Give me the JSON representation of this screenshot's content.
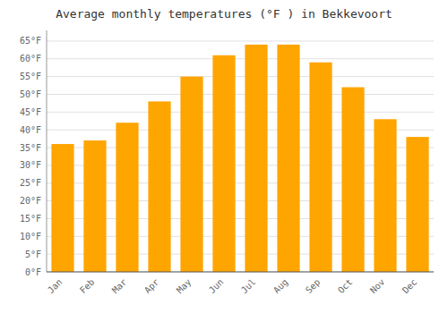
{
  "chart_data": {
    "type": "bar",
    "title": "Average monthly temperatures (°F ) in Bekkevoort",
    "categories": [
      "Jan",
      "Feb",
      "Mar",
      "Apr",
      "May",
      "Jun",
      "Jul",
      "Aug",
      "Sep",
      "Oct",
      "Nov",
      "Dec"
    ],
    "values": [
      36,
      37,
      42,
      48,
      55,
      61,
      64,
      64,
      59,
      52,
      43,
      38
    ],
    "color": "#FFA500",
    "ylim": [
      0,
      68
    ],
    "yticks": [
      {
        "value": 0,
        "label": "0°F"
      },
      {
        "value": 5,
        "label": "5°F"
      },
      {
        "value": 10,
        "label": "10°F"
      },
      {
        "value": 15,
        "label": "15°F"
      },
      {
        "value": 20,
        "label": "20°F"
      },
      {
        "value": 25,
        "label": "25°F"
      },
      {
        "value": 30,
        "label": "30°F"
      },
      {
        "value": 35,
        "label": "35°F"
      },
      {
        "value": 40,
        "label": "40°F"
      },
      {
        "value": 45,
        "label": "45°F"
      },
      {
        "value": 50,
        "label": "50°F"
      },
      {
        "value": 55,
        "label": "55°F"
      },
      {
        "value": 60,
        "label": "60°F"
      },
      {
        "value": 65,
        "label": "65°F"
      }
    ],
    "grid": true
  }
}
